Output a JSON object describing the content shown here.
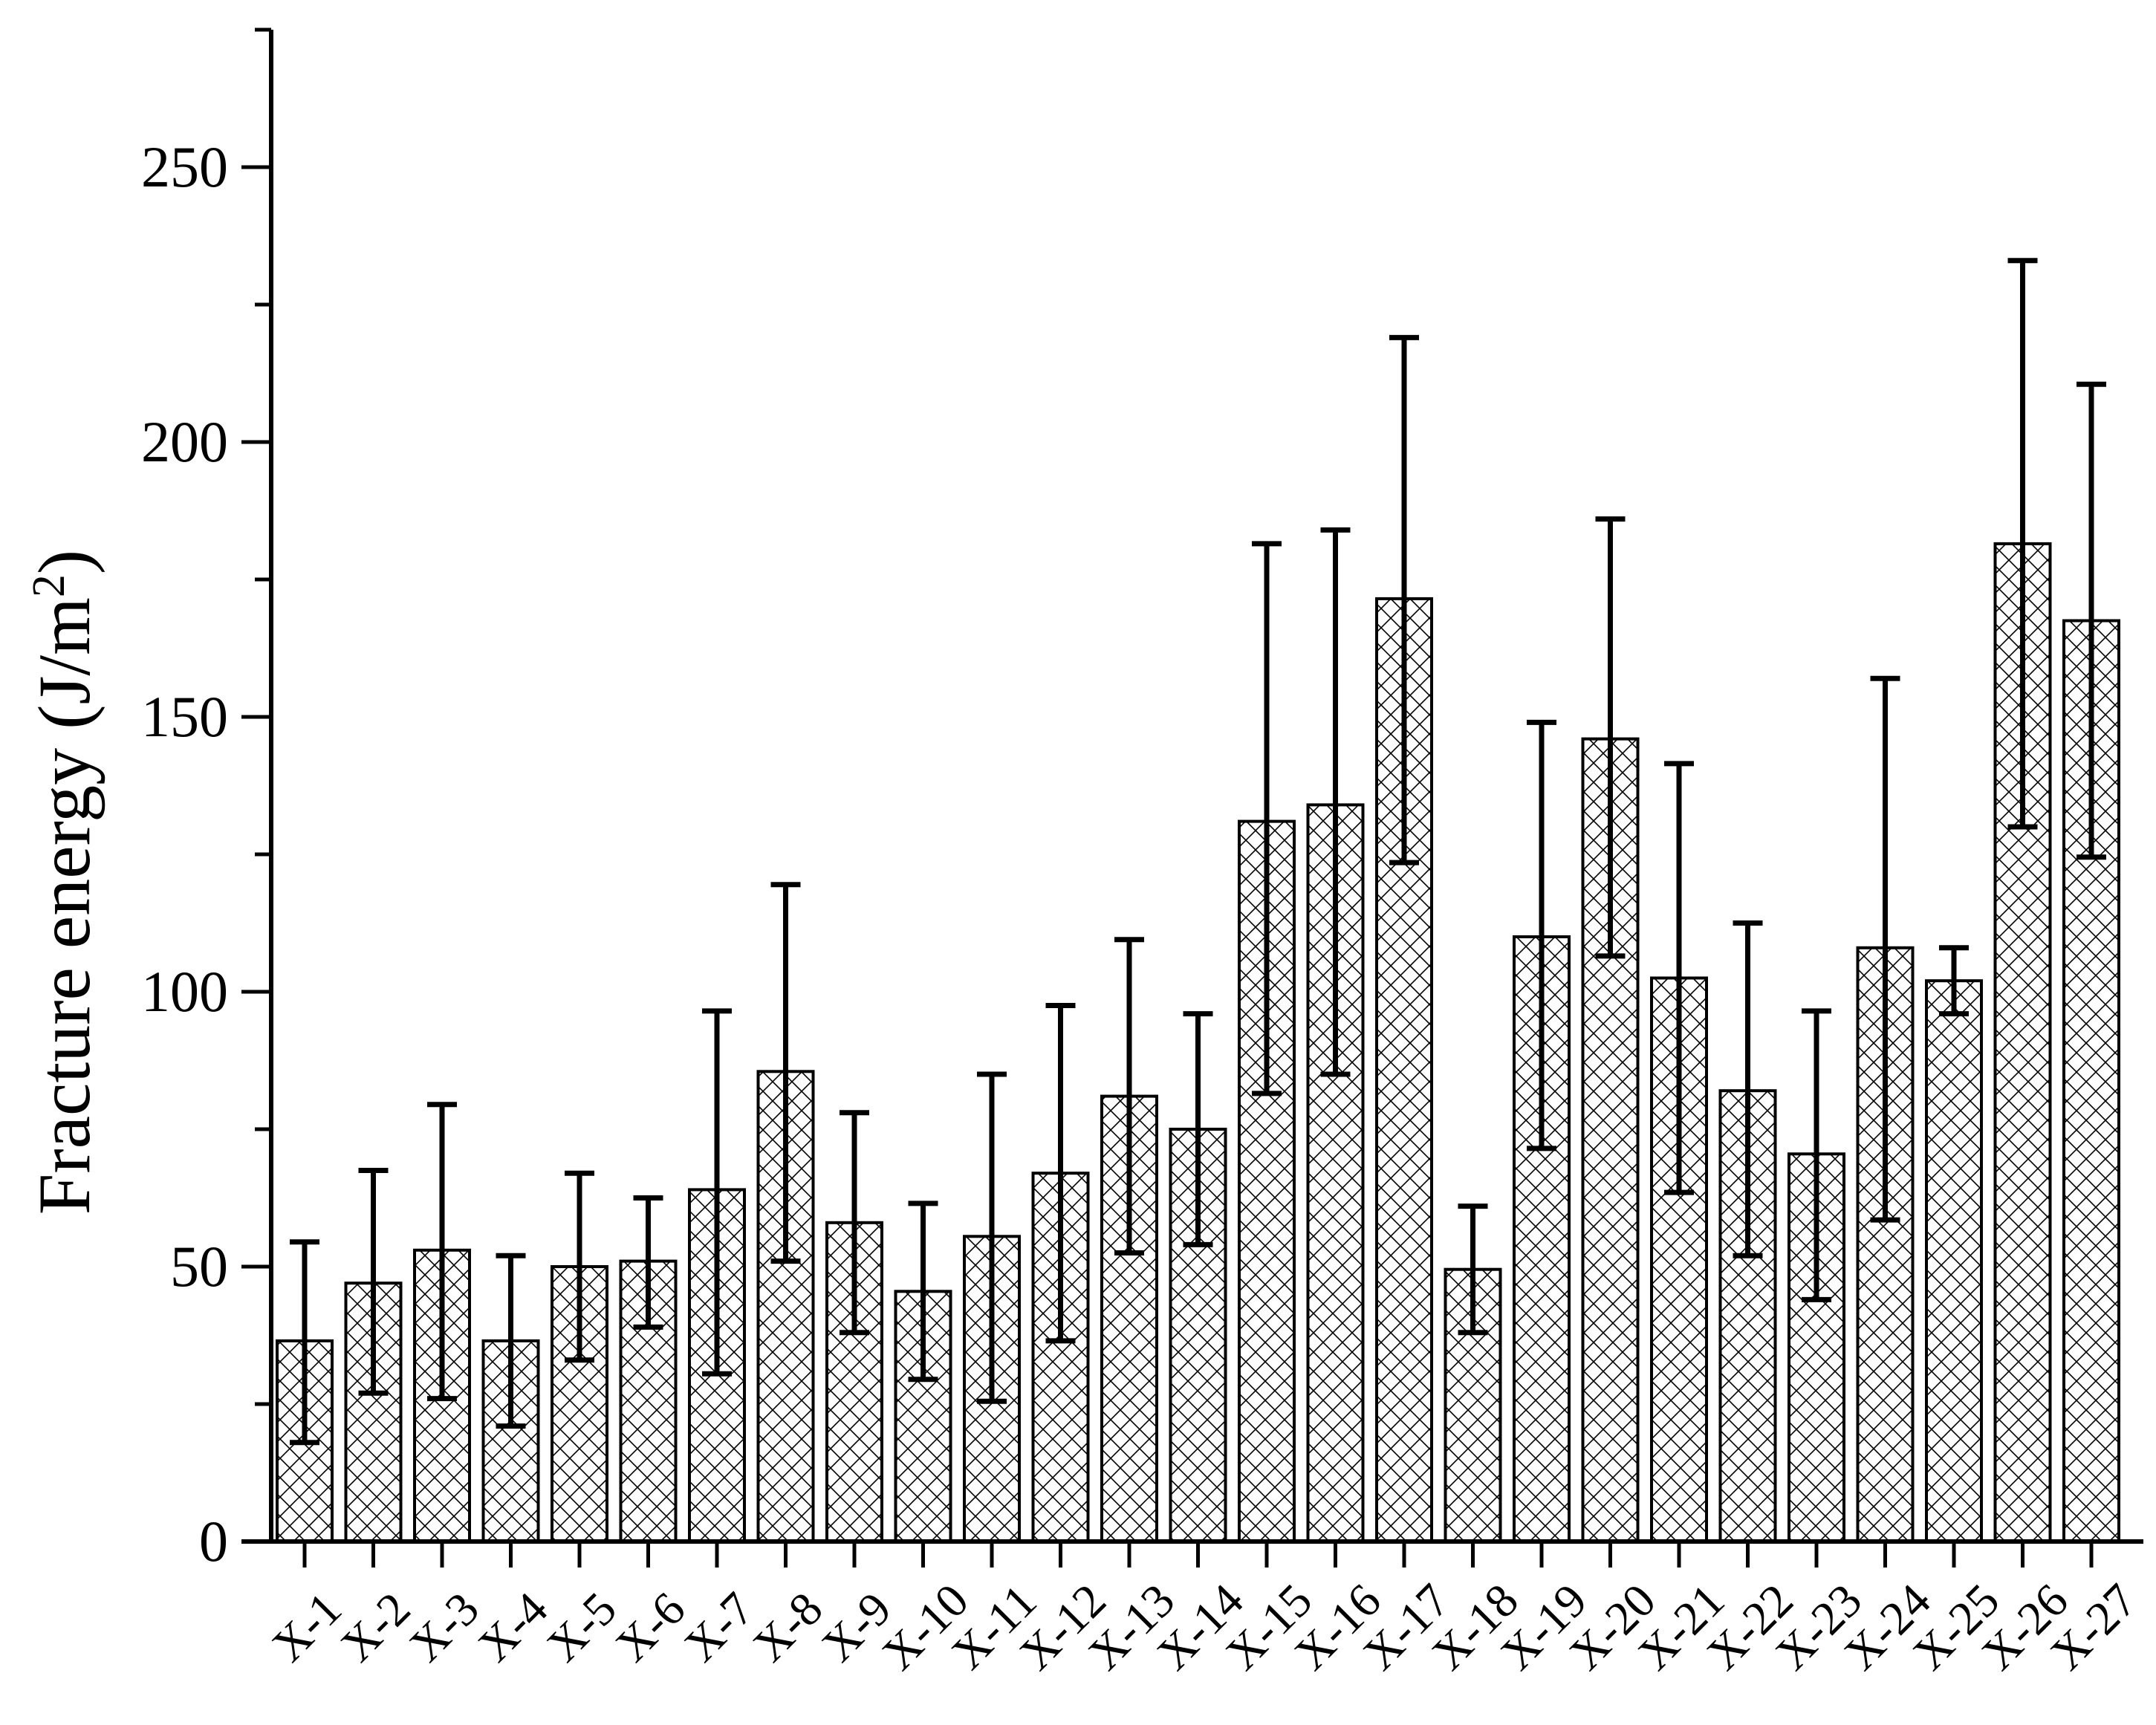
{
  "chart_data": {
    "type": "bar",
    "title": "",
    "xlabel": "",
    "ylabel": "Fracture energy (J/m",
    "ylabel_sup": "2",
    "ylabel_close": ")",
    "ylim": [
      0,
      275
    ],
    "yticks": [
      0,
      50,
      100,
      150,
      200,
      250
    ],
    "ytick_labels": [
      "0",
      "50",
      "100",
      "150",
      "200",
      "250"
    ],
    "categories": [
      "X-1",
      "X-2",
      "X-3",
      "X-4",
      "X-5",
      "X-6",
      "X-7",
      "X-8",
      "X-9",
      "X-10",
      "X-11",
      "X-12",
      "X-13",
      "X-14",
      "X-15",
      "X-16",
      "X-17",
      "X-18",
      "X-19",
      "X-20",
      "X-21",
      "X-22",
      "X-23",
      "X-24",
      "X-25",
      "X-26",
      "X-27"
    ],
    "values": [
      36.5,
      47,
      53,
      36.5,
      50,
      51,
      64,
      85.5,
      58,
      45.5,
      55.5,
      67,
      81,
      75,
      131,
      134,
      171.5,
      49.5,
      110,
      146,
      102.5,
      82,
      70.5,
      108,
      102,
      181.5,
      167.5
    ],
    "error_upper": [
      54.5,
      67.5,
      79.5,
      52,
      67,
      62.5,
      96.5,
      119.5,
      78,
      61.5,
      85,
      97.5,
      109.5,
      96,
      181.5,
      184,
      219,
      61,
      149,
      186,
      141.5,
      112.5,
      96.5,
      157,
      108,
      233,
      210.5
    ],
    "error_lower": [
      18,
      27,
      26,
      21,
      33,
      39,
      30.5,
      51,
      38,
      29.5,
      25.5,
      36.5,
      52.5,
      54,
      81.5,
      85,
      123.5,
      38,
      71.5,
      106.5,
      63.5,
      52,
      44,
      58.5,
      96,
      130,
      124.5
    ],
    "grid": false,
    "legend": "none",
    "colors": {
      "bar_fill": "#ffffff",
      "hatch": "#000000",
      "axis": "#000000"
    }
  }
}
